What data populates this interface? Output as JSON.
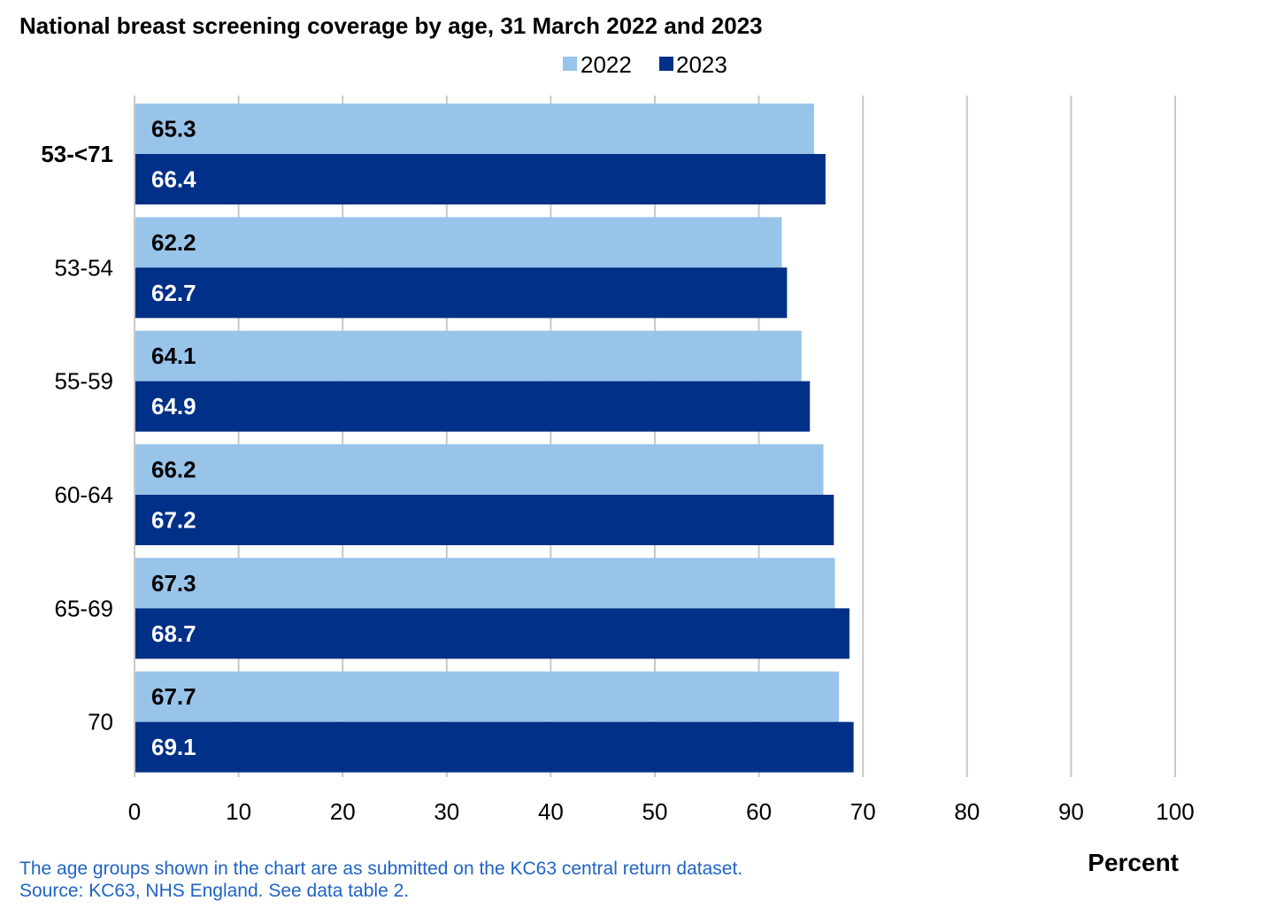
{
  "chart_data": {
    "type": "bar",
    "orientation": "horizontal",
    "title": "National breast screening coverage by age, 31 March 2022 and 2023",
    "categories": [
      "53-<71",
      "53-54",
      "55-59",
      "60-64",
      "65-69",
      "70"
    ],
    "series": [
      {
        "name": "2022",
        "color": "#99c4ea",
        "label_color": "#000000",
        "values": [
          65.3,
          62.2,
          64.1,
          66.2,
          67.3,
          67.7
        ]
      },
      {
        "name": "2023",
        "color": "#003087",
        "label_color": "#ffffff",
        "values": [
          66.4,
          62.7,
          64.9,
          67.2,
          68.7,
          69.1
        ]
      }
    ],
    "xlim": [
      0,
      100
    ],
    "x_ticks": [
      0,
      10,
      20,
      30,
      40,
      50,
      60,
      70,
      80,
      90,
      100
    ],
    "xlabel": "Percent",
    "ylabel": "",
    "grid": "vertical",
    "legend_position": "top-right",
    "bold_category": "53-<71"
  },
  "notes": [
    "The age groups shown in the chart are as submitted on the KC63 central return dataset.",
    "Source: KC63, NHS England. See data table 2."
  ]
}
